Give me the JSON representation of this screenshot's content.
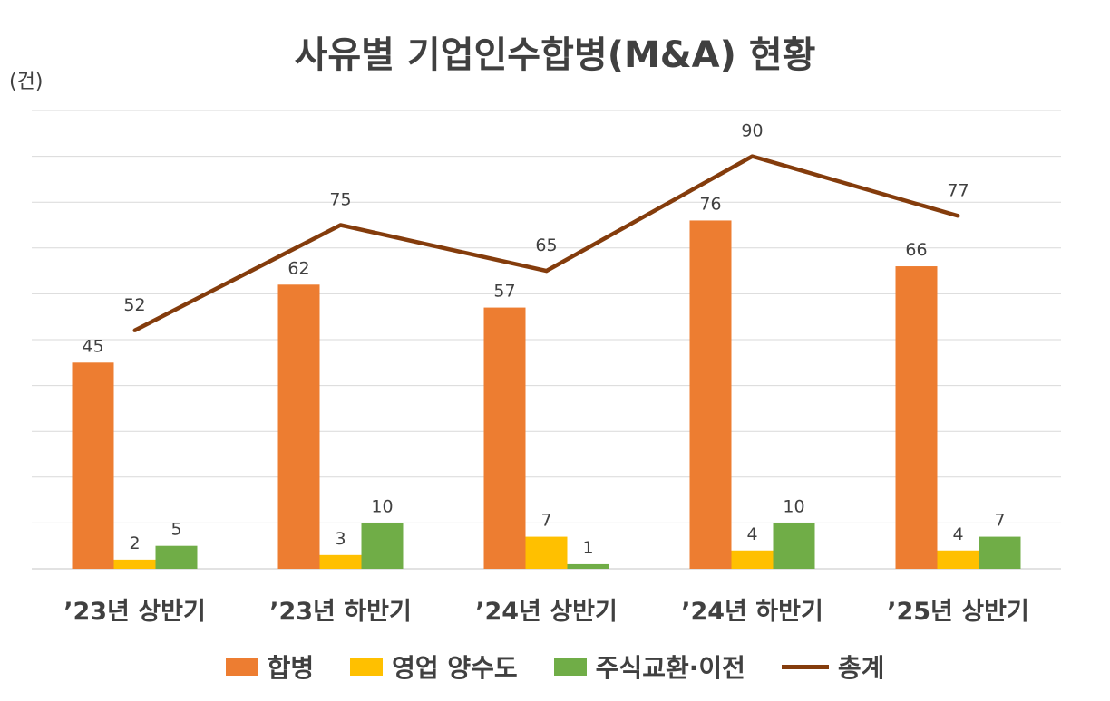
{
  "chart_data": {
    "type": "bar",
    "title": "사유별 기업인수합병(M&A) 현황",
    "unit_label": "(건)",
    "categories": [
      "’23년 상반기",
      "’23년 하반기",
      "’24년 상반기",
      "’24년 하반기",
      "’25년 상반기"
    ],
    "series": [
      {
        "name": "합병",
        "type": "bar",
        "color": "#ED7D31",
        "values": [
          45,
          62,
          57,
          76,
          66
        ]
      },
      {
        "name": "영업 양수도",
        "type": "bar",
        "color": "#FFC000",
        "values": [
          2,
          3,
          7,
          4,
          4
        ]
      },
      {
        "name": "주식교환·이전",
        "type": "bar",
        "color": "#70AD47",
        "values": [
          5,
          10,
          1,
          10,
          7
        ]
      },
      {
        "name": "총계",
        "type": "line",
        "color": "#843C0C",
        "values": [
          52,
          75,
          65,
          90,
          77
        ]
      }
    ],
    "ylim": [
      0,
      100
    ],
    "grid": true,
    "legend_position": "bottom"
  }
}
